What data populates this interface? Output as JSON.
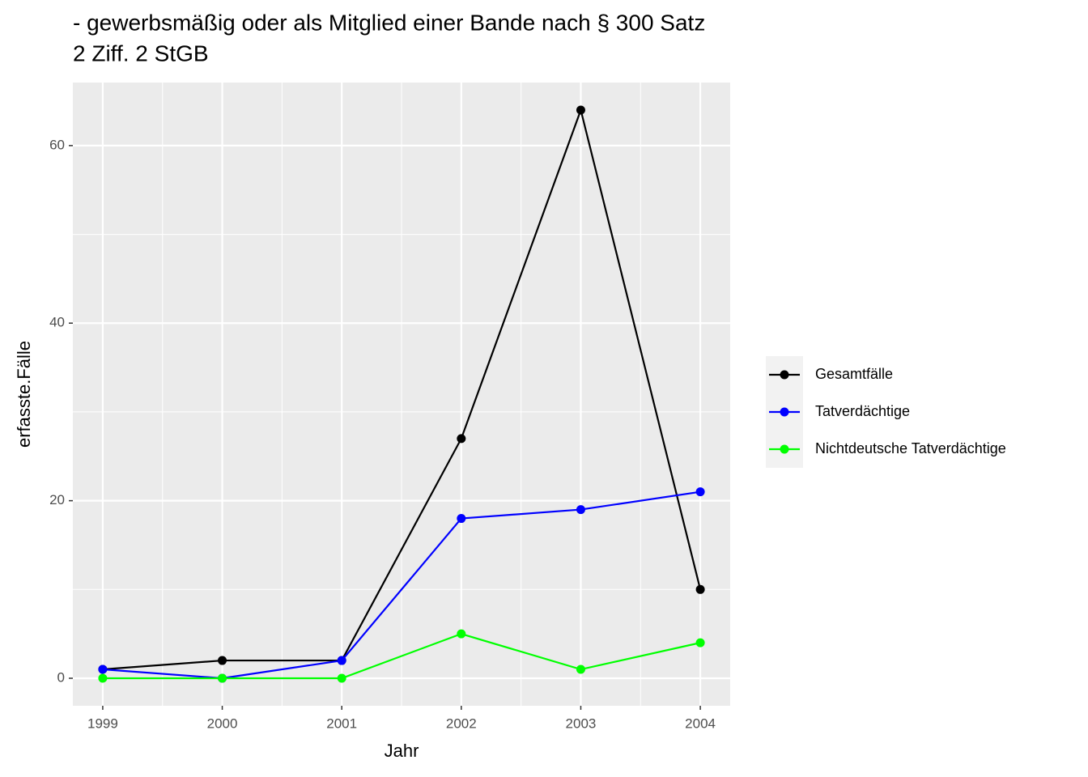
{
  "chart_data": {
    "type": "line",
    "title": [
      "- gewerbsmäßig oder als Mitglied einer Bande nach § 300 Satz",
      "2 Ziff. 2 StGB"
    ],
    "x_label": "Jahr",
    "y_label": "erfasste.Fälle",
    "x": [
      1999,
      2000,
      2001,
      2002,
      2003,
      2004
    ],
    "series": [
      {
        "name": "Gesamtfälle",
        "color": "#000000",
        "values": [
          1,
          2,
          2,
          27,
          64,
          10
        ]
      },
      {
        "name": "Tatverdächtige",
        "color": "#0000ff",
        "values": [
          1,
          0,
          2,
          18,
          19,
          21
        ]
      },
      {
        "name": "Nichtdeutsche Tatverdächtige",
        "color": "#00ff00",
        "values": [
          0,
          0,
          0,
          5,
          1,
          4
        ]
      }
    ],
    "xlim": [
      1998.75,
      2004.25
    ],
    "xticks": [
      1999,
      2000,
      2001,
      2002,
      2003,
      2004
    ],
    "ylim": [
      -3.1,
      67.1
    ],
    "yticks": [
      0,
      20,
      40,
      60
    ],
    "grid": true,
    "legend": "right"
  }
}
